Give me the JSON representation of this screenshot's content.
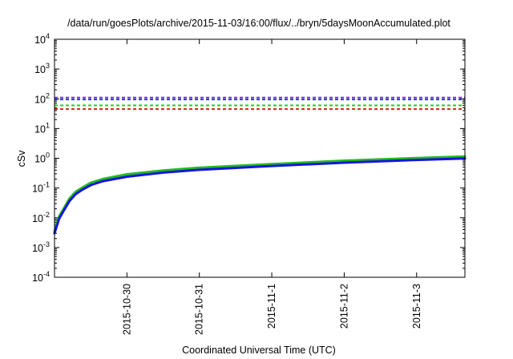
{
  "chart_data": {
    "type": "line",
    "title": "/data/run/goesPlots/archive/2015-11-03/16:00/flux/../bryn/5daysMoonAccumulated.plot",
    "xlabel": "Coordinated Universal Time (UTC)",
    "ylabel": "cSv",
    "y_scale": "log",
    "ylim": [
      0.0001,
      10000
    ],
    "y_ticks": [
      {
        "value": 0.0001,
        "base": "10",
        "exp": "-4"
      },
      {
        "value": 0.001,
        "base": "10",
        "exp": "-3"
      },
      {
        "value": 0.01,
        "base": "10",
        "exp": "-2"
      },
      {
        "value": 0.1,
        "base": "10",
        "exp": "-1"
      },
      {
        "value": 1,
        "base": "10",
        "exp": "0"
      },
      {
        "value": 10,
        "base": "10",
        "exp": "1"
      },
      {
        "value": 100,
        "base": "10",
        "exp": "2"
      },
      {
        "value": 1000,
        "base": "10",
        "exp": "3"
      },
      {
        "value": 10000,
        "base": "10",
        "exp": "4"
      }
    ],
    "xlim": [
      "2015-10-29 00:00",
      "2015-11-03 16:00"
    ],
    "x_ticks": [
      {
        "value": "2015-10-30 00:00",
        "label": "2015-10-30"
      },
      {
        "value": "2015-10-31 00:00",
        "label": "2015-10-31"
      },
      {
        "value": "2015-11-01 00:00",
        "label": "2015-11-1"
      },
      {
        "value": "2015-11-02 00:00",
        "label": "2015-11-2"
      },
      {
        "value": "2015-11-03 00:00",
        "label": "2015-11-3"
      }
    ],
    "grid": false,
    "legend": "none",
    "reference_lines": [
      {
        "y": 110,
        "color": "#7a2be2",
        "style": "dashed"
      },
      {
        "y": 95,
        "color": "#1f3fd8",
        "style": "dashed"
      },
      {
        "y": 60,
        "color": "#22cc22",
        "style": "dashed"
      },
      {
        "y": 45,
        "color": "#e02020",
        "style": "dashed"
      }
    ],
    "series": [
      {
        "color": "#22bb22",
        "x": [
          "2015-10-29 00:00",
          "2015-10-29 01:30",
          "2015-10-29 03:00",
          "2015-10-29 05:00",
          "2015-10-29 07:00",
          "2015-10-29 09:00",
          "2015-10-29 12:00",
          "2015-10-29 16:00",
          "2015-10-30 00:00",
          "2015-10-30 12:00",
          "2015-10-31 00:00",
          "2015-11-01 00:00",
          "2015-11-02 00:00",
          "2015-11-03 00:00",
          "2015-11-03 16:00"
        ],
        "values": [
          0.0035,
          0.011,
          0.02,
          0.045,
          0.075,
          0.1,
          0.15,
          0.2,
          0.29,
          0.39,
          0.48,
          0.64,
          0.83,
          1.02,
          1.15
        ]
      },
      {
        "color": "#1515dd",
        "x": [
          "2015-10-29 00:00",
          "2015-10-29 01:30",
          "2015-10-29 03:00",
          "2015-10-29 05:00",
          "2015-10-29 07:00",
          "2015-10-29 09:00",
          "2015-10-29 12:00",
          "2015-10-29 16:00",
          "2015-10-30 00:00",
          "2015-10-30 12:00",
          "2015-10-31 00:00",
          "2015-11-01 00:00",
          "2015-11-02 00:00",
          "2015-11-03 00:00",
          "2015-11-03 16:00"
        ],
        "values": [
          0.003,
          0.009,
          0.017,
          0.037,
          0.062,
          0.085,
          0.125,
          0.17,
          0.24,
          0.33,
          0.41,
          0.55,
          0.71,
          0.88,
          0.98
        ]
      }
    ]
  }
}
